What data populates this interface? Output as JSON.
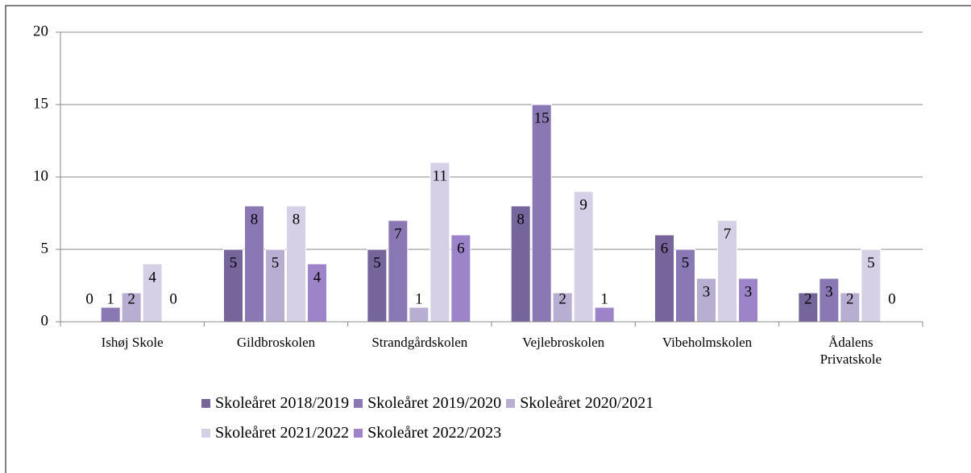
{
  "chart_data": {
    "type": "bar",
    "categories": [
      "Ishøj Skole",
      "Gildbroskolen",
      "Strandgårdskolen",
      "Vejlebroskolen",
      "Vibeholmskolen",
      "Ådalens Privatskole"
    ],
    "series": [
      {
        "name": "Skoleåret 2018/2019",
        "color": "#76659a",
        "values": [
          0,
          5,
          5,
          8,
          6,
          2
        ]
      },
      {
        "name": "Skoleåret 2019/2020",
        "color": "#8a78b5",
        "values": [
          1,
          8,
          7,
          15,
          5,
          3
        ]
      },
      {
        "name": "Skoleåret 2020/2021",
        "color": "#b8aed2",
        "values": [
          2,
          5,
          1,
          2,
          3,
          2
        ]
      },
      {
        "name": "Skoleåret 2021/2022",
        "color": "#d6d0e6",
        "values": [
          4,
          8,
          11,
          9,
          7,
          5
        ]
      },
      {
        "name": "Skoleåret 2022/2023",
        "color": "#9d84c9",
        "values": [
          0,
          4,
          6,
          1,
          3,
          0
        ]
      }
    ],
    "ylim": [
      0,
      20
    ],
    "yticks": [
      0,
      5,
      10,
      15,
      20
    ],
    "grid": true,
    "legend": "bottom"
  }
}
